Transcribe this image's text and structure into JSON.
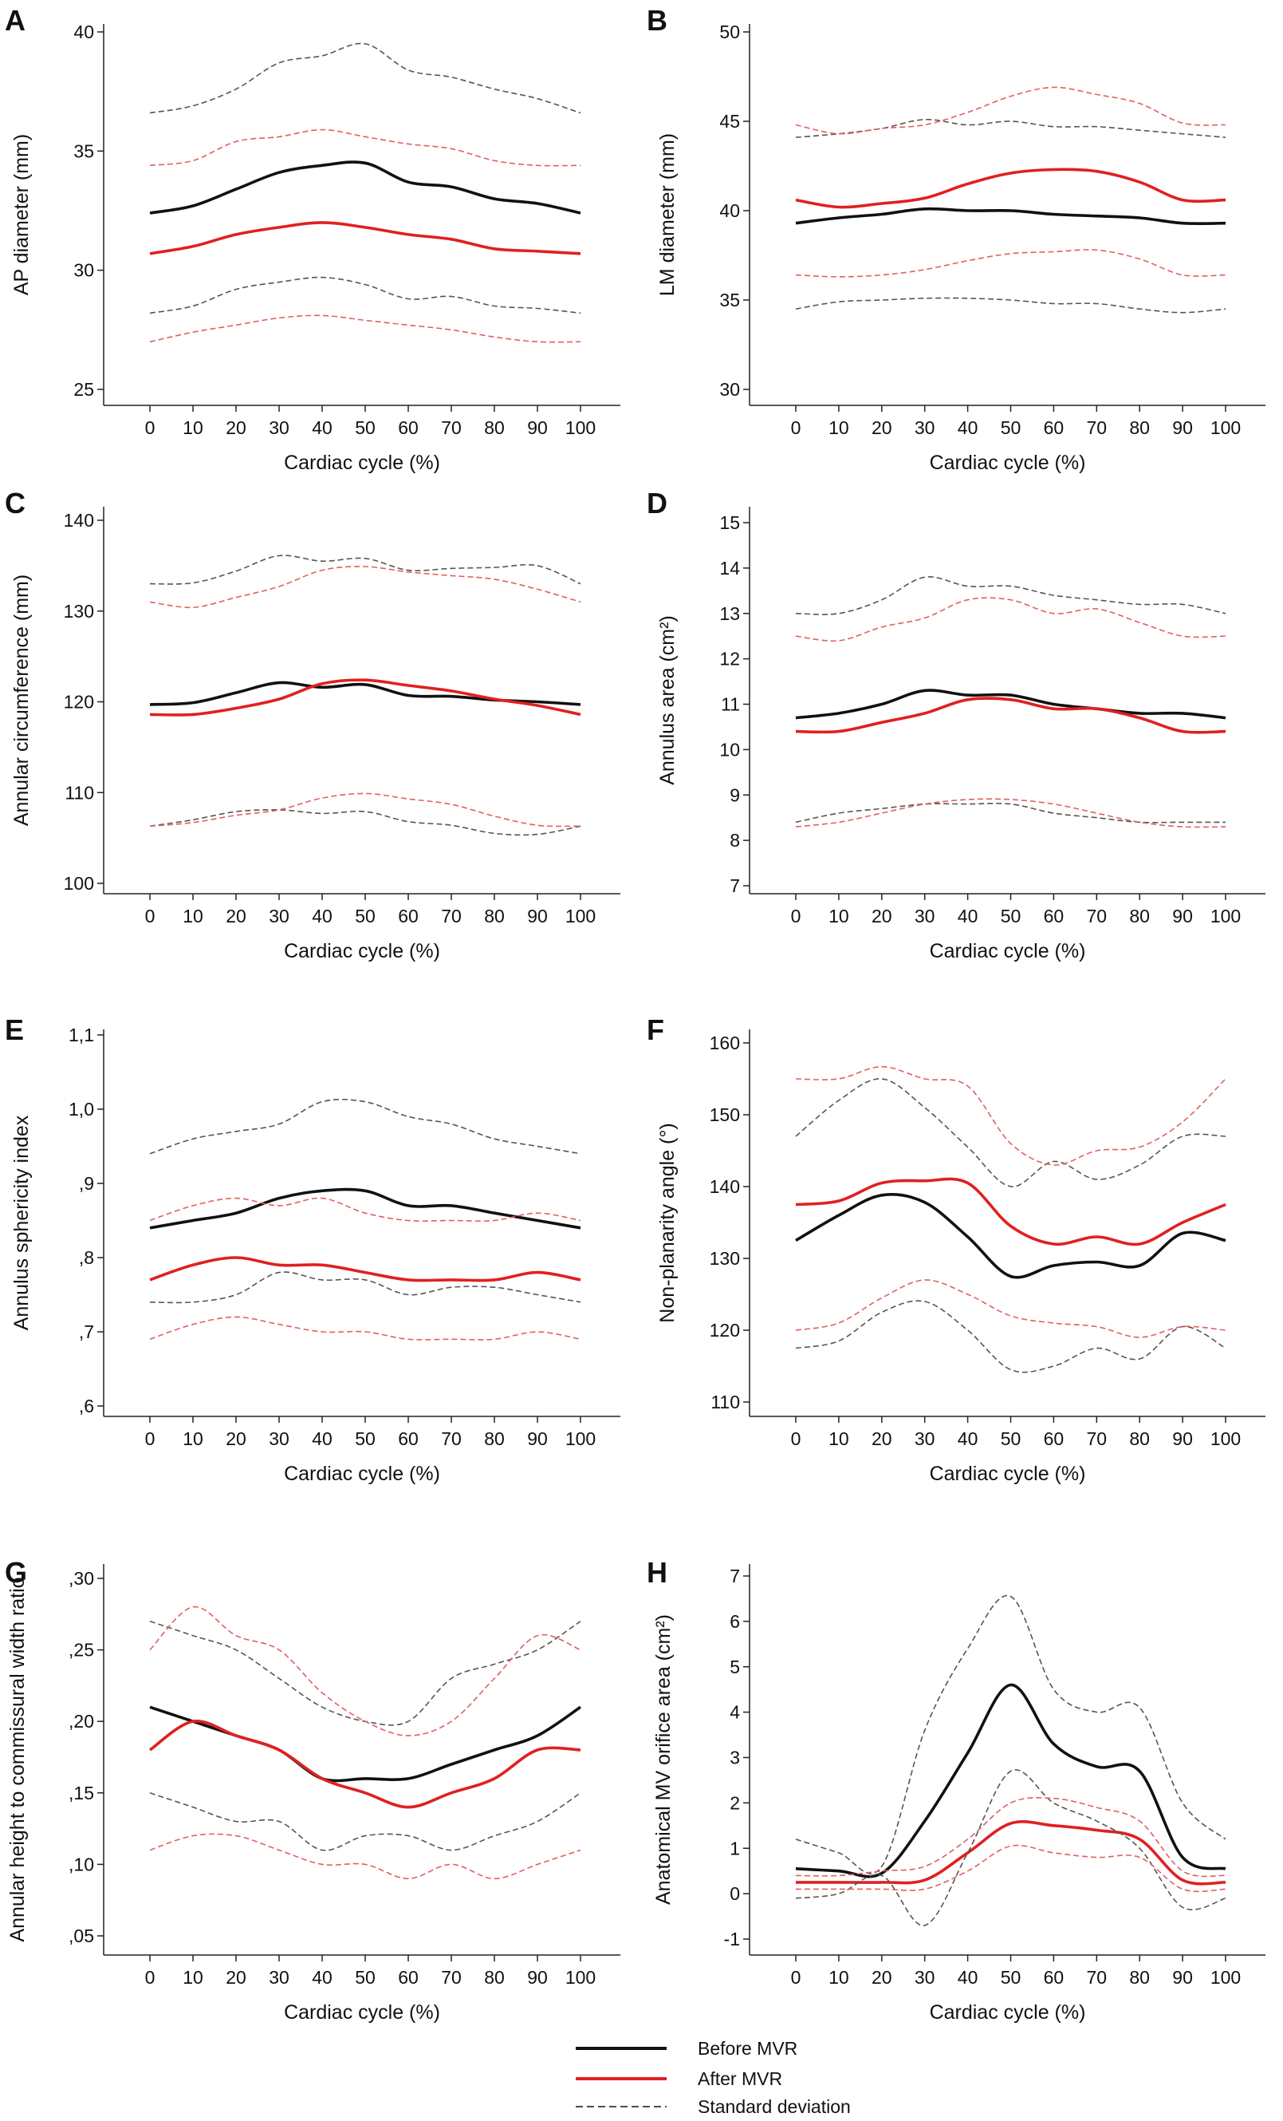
{
  "figure": {
    "xlabel_common": "Cardiac cycle (%)",
    "x_ticks": [
      "0",
      "10",
      "20",
      "30",
      "40",
      "50",
      "60",
      "70",
      "80",
      "90",
      "100"
    ],
    "colors": {
      "before": "#111111",
      "after": "#e02020",
      "sd_before": "#555555",
      "sd_after": "#e06060",
      "axis": "#222222"
    }
  },
  "legend": {
    "before": "Before MVR",
    "after": "After MVR",
    "sd": "Standard deviation"
  },
  "chart_data": [
    {
      "panel": "A",
      "type": "line",
      "ylabel": "AP diameter (mm)",
      "xlabel": "Cardiac cycle (%)",
      "ylim": [
        25,
        40
      ],
      "yticks": [
        "25",
        "30",
        "35",
        "40"
      ],
      "ytick_values": [
        25,
        30,
        35,
        40
      ],
      "x": [
        0,
        10,
        20,
        30,
        40,
        50,
        60,
        70,
        80,
        90,
        100
      ],
      "series": [
        {
          "name": "Before MVR",
          "values": [
            32.4,
            32.7,
            33.4,
            34.1,
            34.4,
            34.5,
            33.7,
            33.5,
            33.0,
            32.8,
            32.4
          ]
        },
        {
          "name": "After MVR",
          "values": [
            30.7,
            31.0,
            31.5,
            31.8,
            32.0,
            31.8,
            31.5,
            31.3,
            30.9,
            30.8,
            30.7
          ]
        },
        {
          "name": "Before MVR +SD",
          "values": [
            36.6,
            36.9,
            37.6,
            38.7,
            39.0,
            39.5,
            38.4,
            38.1,
            37.6,
            37.2,
            36.6
          ]
        },
        {
          "name": "Before MVR -SD",
          "values": [
            28.2,
            28.5,
            29.2,
            29.5,
            29.7,
            29.4,
            28.8,
            28.9,
            28.5,
            28.4,
            28.2
          ]
        },
        {
          "name": "After MVR +SD",
          "values": [
            34.4,
            34.6,
            35.4,
            35.6,
            35.9,
            35.6,
            35.3,
            35.1,
            34.6,
            34.4,
            34.4
          ]
        },
        {
          "name": "After MVR -SD",
          "values": [
            27.0,
            27.4,
            27.7,
            28.0,
            28.1,
            27.9,
            27.7,
            27.5,
            27.2,
            27.0,
            27.0
          ]
        }
      ]
    },
    {
      "panel": "B",
      "type": "line",
      "ylabel": "LM diameter (mm)",
      "xlabel": "Cardiac cycle (%)",
      "ylim": [
        30,
        50
      ],
      "yticks": [
        "30",
        "35",
        "40",
        "45",
        "50"
      ],
      "ytick_values": [
        30,
        35,
        40,
        45,
        50
      ],
      "x": [
        0,
        10,
        20,
        30,
        40,
        50,
        60,
        70,
        80,
        90,
        100
      ],
      "series": [
        {
          "name": "Before MVR",
          "values": [
            39.3,
            39.6,
            39.8,
            40.1,
            40.0,
            40.0,
            39.8,
            39.7,
            39.6,
            39.3,
            39.3
          ]
        },
        {
          "name": "After MVR",
          "values": [
            40.6,
            40.2,
            40.4,
            40.7,
            41.5,
            42.1,
            42.3,
            42.2,
            41.6,
            40.6,
            40.6
          ]
        },
        {
          "name": "Before MVR +SD",
          "values": [
            44.1,
            44.3,
            44.6,
            45.1,
            44.8,
            45.0,
            44.7,
            44.7,
            44.5,
            44.3,
            44.1
          ]
        },
        {
          "name": "Before MVR -SD",
          "values": [
            34.5,
            34.9,
            35.0,
            35.1,
            35.1,
            35.0,
            34.8,
            34.8,
            34.5,
            34.3,
            34.5
          ]
        },
        {
          "name": "After MVR +SD",
          "values": [
            44.8,
            44.3,
            44.6,
            44.8,
            45.5,
            46.4,
            46.9,
            46.5,
            46.0,
            44.9,
            44.8
          ]
        },
        {
          "name": "After MVR -SD",
          "values": [
            36.4,
            36.3,
            36.4,
            36.7,
            37.2,
            37.6,
            37.7,
            37.8,
            37.3,
            36.4,
            36.4
          ]
        }
      ]
    },
    {
      "panel": "C",
      "type": "line",
      "ylabel": "Annular circumference (mm)",
      "xlabel": "Cardiac cycle (%)",
      "ylim": [
        100,
        140
      ],
      "yticks": [
        "100",
        "110",
        "120",
        "130",
        "140"
      ],
      "ytick_values": [
        100,
        110,
        120,
        130,
        140
      ],
      "x": [
        0,
        10,
        20,
        30,
        40,
        50,
        60,
        70,
        80,
        90,
        100
      ],
      "series": [
        {
          "name": "Before MVR",
          "values": [
            119.7,
            119.9,
            121.0,
            122.1,
            121.6,
            121.9,
            120.7,
            120.6,
            120.2,
            120.0,
            119.7
          ]
        },
        {
          "name": "After MVR",
          "values": [
            118.6,
            118.6,
            119.3,
            120.3,
            122.0,
            122.4,
            121.8,
            121.2,
            120.3,
            119.6,
            118.6
          ]
        },
        {
          "name": "Before MVR +SD",
          "values": [
            133.0,
            133.1,
            134.4,
            136.1,
            135.5,
            135.8,
            134.5,
            134.7,
            134.8,
            135.0,
            133.0
          ]
        },
        {
          "name": "Before MVR -SD",
          "values": [
            106.3,
            107.0,
            107.9,
            108.1,
            107.7,
            107.9,
            106.8,
            106.4,
            105.5,
            105.4,
            106.3
          ]
        },
        {
          "name": "After MVR +SD",
          "values": [
            131.0,
            130.4,
            131.5,
            132.7,
            134.5,
            134.9,
            134.3,
            133.9,
            133.5,
            132.4,
            131.0
          ]
        },
        {
          "name": "After MVR -SD",
          "values": [
            106.3,
            106.7,
            107.5,
            108.1,
            109.4,
            109.9,
            109.3,
            108.7,
            107.4,
            106.4,
            106.3
          ]
        }
      ]
    },
    {
      "panel": "D",
      "type": "line",
      "ylabel": "Annulus area (cm²)",
      "xlabel": "Cardiac cycle (%)",
      "ylim": [
        7,
        15
      ],
      "yticks": [
        "7",
        "8",
        "9",
        "10",
        "11",
        "12",
        "13",
        "14",
        "15"
      ],
      "ytick_values": [
        7,
        8,
        9,
        10,
        11,
        12,
        13,
        14,
        15
      ],
      "x": [
        0,
        10,
        20,
        30,
        40,
        50,
        60,
        70,
        80,
        90,
        100
      ],
      "series": [
        {
          "name": "Before MVR",
          "values": [
            10.7,
            10.8,
            11.0,
            11.3,
            11.2,
            11.2,
            11.0,
            10.9,
            10.8,
            10.8,
            10.7
          ]
        },
        {
          "name": "After MVR",
          "values": [
            10.4,
            10.4,
            10.6,
            10.8,
            11.1,
            11.1,
            10.9,
            10.9,
            10.7,
            10.4,
            10.4
          ]
        },
        {
          "name": "Before MVR +SD",
          "values": [
            13.0,
            13.0,
            13.3,
            13.8,
            13.6,
            13.6,
            13.4,
            13.3,
            13.2,
            13.2,
            13.0
          ]
        },
        {
          "name": "Before MVR -SD",
          "values": [
            8.4,
            8.6,
            8.7,
            8.8,
            8.8,
            8.8,
            8.6,
            8.5,
            8.4,
            8.4,
            8.4
          ]
        },
        {
          "name": "After MVR +SD",
          "values": [
            12.5,
            12.4,
            12.7,
            12.9,
            13.3,
            13.3,
            13.0,
            13.1,
            12.8,
            12.5,
            12.5
          ]
        },
        {
          "name": "After MVR -SD",
          "values": [
            8.3,
            8.4,
            8.6,
            8.8,
            8.9,
            8.9,
            8.8,
            8.6,
            8.4,
            8.3,
            8.3
          ]
        }
      ]
    },
    {
      "panel": "E",
      "type": "line",
      "ylabel": "Annulus sphericity index",
      "xlabel": "Cardiac cycle (%)",
      "ylim": [
        0.6,
        1.1
      ],
      "yticks": [
        ",6",
        ",7",
        ",8",
        ",9",
        "1,0",
        "1,1"
      ],
      "ytick_values": [
        0.6,
        0.7,
        0.8,
        0.9,
        1.0,
        1.1
      ],
      "x": [
        0,
        10,
        20,
        30,
        40,
        50,
        60,
        70,
        80,
        90,
        100
      ],
      "series": [
        {
          "name": "Before MVR",
          "values": [
            0.84,
            0.85,
            0.86,
            0.88,
            0.89,
            0.89,
            0.87,
            0.87,
            0.86,
            0.85,
            0.84
          ]
        },
        {
          "name": "After MVR",
          "values": [
            0.77,
            0.79,
            0.8,
            0.79,
            0.79,
            0.78,
            0.77,
            0.77,
            0.77,
            0.78,
            0.77
          ]
        },
        {
          "name": "Before MVR +SD",
          "values": [
            0.94,
            0.96,
            0.97,
            0.98,
            1.01,
            1.01,
            0.99,
            0.98,
            0.96,
            0.95,
            0.94
          ]
        },
        {
          "name": "Before MVR -SD",
          "values": [
            0.74,
            0.74,
            0.75,
            0.78,
            0.77,
            0.77,
            0.75,
            0.76,
            0.76,
            0.75,
            0.74
          ]
        },
        {
          "name": "After MVR +SD",
          "values": [
            0.85,
            0.87,
            0.88,
            0.87,
            0.88,
            0.86,
            0.85,
            0.85,
            0.85,
            0.86,
            0.85
          ]
        },
        {
          "name": "After MVR -SD",
          "values": [
            0.69,
            0.71,
            0.72,
            0.71,
            0.7,
            0.7,
            0.69,
            0.69,
            0.69,
            0.7,
            0.69
          ]
        }
      ]
    },
    {
      "panel": "F",
      "type": "line",
      "ylabel": "Non-planarity angle (°)",
      "xlabel": "Cardiac cycle (%)",
      "ylim": [
        110,
        160
      ],
      "yticks": [
        "110",
        "120",
        "130",
        "140",
        "150",
        "160"
      ],
      "ytick_values": [
        110,
        120,
        130,
        140,
        150,
        160
      ],
      "x": [
        0,
        10,
        20,
        30,
        40,
        50,
        60,
        70,
        80,
        90,
        100
      ],
      "series": [
        {
          "name": "Before MVR",
          "values": [
            132.5,
            136.0,
            138.8,
            137.8,
            133.0,
            127.5,
            129.0,
            129.5,
            129.0,
            133.5,
            132.5
          ]
        },
        {
          "name": "After MVR",
          "values": [
            137.5,
            138.0,
            140.5,
            140.8,
            140.5,
            134.5,
            132.0,
            133.0,
            132.0,
            135.0,
            137.5
          ]
        },
        {
          "name": "Before MVR +SD",
          "values": [
            147.0,
            152.0,
            155.0,
            151.0,
            145.5,
            140.0,
            143.5,
            141.0,
            143.0,
            147.0,
            147.0
          ]
        },
        {
          "name": "Before MVR -SD",
          "values": [
            117.5,
            118.5,
            122.5,
            124.0,
            120.0,
            114.5,
            115.0,
            117.5,
            116.0,
            120.5,
            117.5
          ]
        },
        {
          "name": "After MVR +SD",
          "values": [
            155.0,
            155.0,
            156.7,
            155.0,
            154.0,
            146.0,
            143.0,
            145.0,
            145.5,
            149.0,
            155.0
          ]
        },
        {
          "name": "After MVR -SD",
          "values": [
            120.0,
            121.0,
            124.5,
            127.0,
            125.0,
            122.0,
            121.0,
            120.5,
            119.0,
            120.5,
            120.0
          ]
        }
      ]
    },
    {
      "panel": "G",
      "type": "line",
      "ylabel": "Annular height to commissural width ratio",
      "xlabel": "Cardiac cycle (%)",
      "ylim": [
        0.05,
        0.3
      ],
      "yticks": [
        ",05",
        ",10",
        ",15",
        ",20",
        ",25",
        ",30"
      ],
      "ytick_values": [
        0.05,
        0.1,
        0.15,
        0.2,
        0.25,
        0.3
      ],
      "x": [
        0,
        10,
        20,
        30,
        40,
        50,
        60,
        70,
        80,
        90,
        100
      ],
      "series": [
        {
          "name": "Before MVR",
          "values": [
            0.21,
            0.2,
            0.19,
            0.18,
            0.16,
            0.16,
            0.16,
            0.17,
            0.18,
            0.19,
            0.21
          ]
        },
        {
          "name": "After MVR",
          "values": [
            0.18,
            0.2,
            0.19,
            0.18,
            0.16,
            0.15,
            0.14,
            0.15,
            0.16,
            0.18,
            0.18
          ]
        },
        {
          "name": "Before MVR +SD",
          "values": [
            0.27,
            0.26,
            0.25,
            0.23,
            0.21,
            0.2,
            0.2,
            0.23,
            0.24,
            0.25,
            0.27
          ]
        },
        {
          "name": "Before MVR -SD",
          "values": [
            0.15,
            0.14,
            0.13,
            0.13,
            0.11,
            0.12,
            0.12,
            0.11,
            0.12,
            0.13,
            0.15
          ]
        },
        {
          "name": "After MVR +SD",
          "values": [
            0.25,
            0.28,
            0.26,
            0.25,
            0.22,
            0.2,
            0.19,
            0.2,
            0.23,
            0.26,
            0.25
          ]
        },
        {
          "name": "After MVR -SD",
          "values": [
            0.11,
            0.12,
            0.12,
            0.11,
            0.1,
            0.1,
            0.09,
            0.1,
            0.09,
            0.1,
            0.11
          ]
        }
      ]
    },
    {
      "panel": "H",
      "type": "line",
      "ylabel": "Anatomical MV orifice area (cm²)",
      "xlabel": "Cardiac cycle (%)",
      "ylim": [
        -1,
        7
      ],
      "yticks": [
        "-1",
        "0",
        "1",
        "2",
        "3",
        "4",
        "5",
        "6",
        "7"
      ],
      "ytick_values": [
        -1,
        0,
        1,
        2,
        3,
        4,
        5,
        6,
        7
      ],
      "x": [
        0,
        10,
        20,
        30,
        40,
        50,
        60,
        70,
        80,
        90,
        100
      ],
      "series": [
        {
          "name": "Before MVR",
          "values": [
            0.55,
            0.5,
            0.45,
            1.6,
            3.1,
            4.6,
            3.3,
            2.8,
            2.7,
            0.8,
            0.55
          ]
        },
        {
          "name": "After MVR",
          "values": [
            0.25,
            0.25,
            0.25,
            0.3,
            0.9,
            1.55,
            1.5,
            1.4,
            1.2,
            0.3,
            0.25
          ]
        },
        {
          "name": "Before MVR +SD",
          "values": [
            1.2,
            0.9,
            0.6,
            3.6,
            5.4,
            6.55,
            4.5,
            4.0,
            4.1,
            2.0,
            1.2
          ]
        },
        {
          "name": "Before MVR -SD",
          "values": [
            -0.1,
            0.0,
            0.4,
            -0.7,
            0.9,
            2.7,
            2.0,
            1.6,
            1.0,
            -0.3,
            -0.1
          ]
        },
        {
          "name": "After MVR +SD",
          "values": [
            0.4,
            0.4,
            0.5,
            0.6,
            1.2,
            2.0,
            2.1,
            1.9,
            1.6,
            0.5,
            0.4
          ]
        },
        {
          "name": "After MVR -SD",
          "values": [
            0.1,
            0.1,
            0.1,
            0.1,
            0.5,
            1.05,
            0.9,
            0.8,
            0.8,
            0.1,
            0.1
          ]
        }
      ]
    }
  ]
}
